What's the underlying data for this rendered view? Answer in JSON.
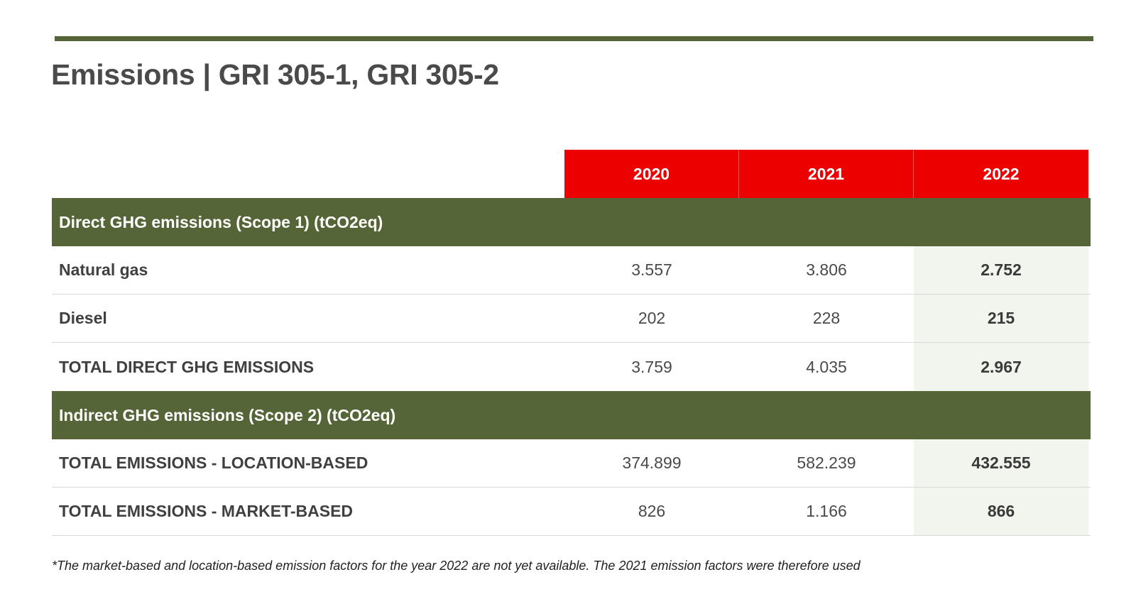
{
  "title": "Emissions | GRI 305-1, GRI 305-2",
  "table": {
    "years": [
      "2020",
      "2021",
      "2022"
    ],
    "sections": [
      {
        "heading": "Direct GHG emissions (Scope 1) (tCO2eq)",
        "rows": [
          {
            "label": "Natural gas",
            "values": [
              "3.557",
              "3.806",
              "2.752"
            ]
          },
          {
            "label": "Diesel",
            "values": [
              "202",
              "228",
              "215"
            ]
          },
          {
            "label": "TOTAL DIRECT GHG EMISSIONS",
            "values": [
              "3.759",
              "4.035",
              "2.967"
            ]
          }
        ]
      },
      {
        "heading": "Indirect GHG emissions (Scope 2) (tCO2eq)",
        "rows": [
          {
            "label": "TOTAL EMISSIONS - LOCATION-BASED",
            "values": [
              "374.899",
              "582.239",
              "432.555"
            ]
          },
          {
            "label": "TOTAL EMISSIONS - MARKET-BASED",
            "values": [
              "826",
              "1.166",
              "866"
            ]
          }
        ]
      }
    ]
  },
  "footnote": "*The market-based and location-based emission factors for the year 2022 are not yet available. The 2021 emission factors were therefore used",
  "colors": {
    "header_red": "#ec0000",
    "section_green": "#566538",
    "highlight_column": "#f2f4ee"
  }
}
